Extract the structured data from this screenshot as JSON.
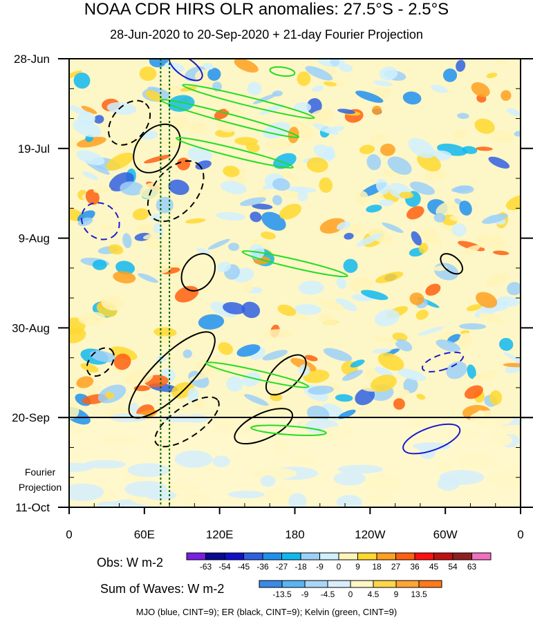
{
  "title": "NOAA CDR HIRS OLR anomalies: 27.5°S - 2.5°S",
  "subtitle": "28-Jun-2020 to 20-Sep-2020 + 21-day Fourier Projection",
  "projection_label_line1": "Fourier",
  "projection_label_line2": "Projection",
  "obs_label": "Obs: W m-2",
  "waves_label": "Sum of Waves: W m-2",
  "footer": "MJO (blue, CINT=9); ER (black, CINT=9); Kelvin (green, CINT=9)",
  "colors": {
    "mjo": "#1a1acc",
    "er": "#000000",
    "kelvin": "#22dd22",
    "dotted_lines": "#006400"
  },
  "chart_data": {
    "type": "heatmap",
    "xlabel": "",
    "ylabel": "",
    "x_ticks": [
      "0",
      "60E",
      "120E",
      "180",
      "120W",
      "60W",
      "0"
    ],
    "x_tick_lon": [
      0,
      60,
      120,
      180,
      240,
      300,
      360
    ],
    "y_ticks": [
      "28-Jun",
      "19-Jul",
      "9-Aug",
      "30-Aug",
      "20-Sep",
      "11-Oct"
    ],
    "y_tick_day": [
      0,
      21,
      42,
      63,
      84,
      105
    ],
    "observation_end": "20-Sep",
    "reference_lon_lines": [
      73,
      80
    ],
    "obs_colorbar": {
      "labels": [
        "-63",
        "-54",
        "-45",
        "-36",
        "-27",
        "-18",
        "-9",
        "0",
        "9",
        "18",
        "27",
        "36",
        "45",
        "54",
        "63"
      ],
      "colors": [
        "#7a1fe0",
        "#0a0a90",
        "#1010c8",
        "#3060e0",
        "#2090f0",
        "#10b8f0",
        "#9cd0f8",
        "#d0f0ff",
        "#fff4b8",
        "#ffd830",
        "#ffa020",
        "#ff6010",
        "#ff1010",
        "#c01010",
        "#902020",
        "#f070c0"
      ]
    },
    "waves_colorbar": {
      "labels": [
        "-13.5",
        "-9",
        "-4.5",
        "0",
        "4.5",
        "9",
        "13.5"
      ],
      "colors": [
        "#3a8ae6",
        "#59b4f2",
        "#a7d6f6",
        "#d7eefa",
        "#fff6c4",
        "#ffd64a",
        "#ffa533",
        "#ff7a1a"
      ]
    },
    "wave_contours": [
      {
        "wave": "MJO",
        "lon": 93,
        "day": 2,
        "rlon": 7,
        "rday": 4.5,
        "tilt": -55,
        "dash": false
      },
      {
        "wave": "MJO",
        "lon": 25,
        "day": 38,
        "rlon": 16,
        "rday": 4,
        "tilt": 40,
        "dash": true
      },
      {
        "wave": "MJO",
        "lon": 289,
        "day": 89,
        "rlon": 9,
        "rday": 7,
        "tilt": 70,
        "dash": false
      },
      {
        "wave": "MJO",
        "lon": 298,
        "day": 71,
        "rlon": 6,
        "rday": 5,
        "tilt": 72,
        "dash": true
      },
      {
        "wave": "ER",
        "lon": 48,
        "day": 15,
        "rlon": 20,
        "rday": 4,
        "tilt": -50,
        "dash": true
      },
      {
        "wave": "ER",
        "lon": 70,
        "day": 21,
        "rlon": 22,
        "rday": 4.5,
        "tilt": -48,
        "dash": false
      },
      {
        "wave": "ER",
        "lon": 85,
        "day": 31,
        "rlon": 28,
        "rday": 5,
        "tilt": -50,
        "dash": true
      },
      {
        "wave": "ER",
        "lon": 103,
        "day": 50,
        "rlon": 16,
        "rday": 3.5,
        "tilt": -55,
        "dash": false
      },
      {
        "wave": "ER",
        "lon": 82,
        "day": 74,
        "rlon": 46,
        "rday": 4.5,
        "tilt": -45,
        "dash": false
      },
      {
        "wave": "ER",
        "lon": 25,
        "day": 71,
        "rlon": 13,
        "rday": 2.5,
        "tilt": -48,
        "dash": true
      },
      {
        "wave": "ER",
        "lon": 94,
        "day": 85,
        "rlon": 30,
        "rday": 3.5,
        "tilt": -35,
        "dash": true
      },
      {
        "wave": "ER",
        "lon": 155,
        "day": 86,
        "rlon": 25,
        "rday": 3,
        "tilt": -25,
        "dash": false
      },
      {
        "wave": "ER",
        "lon": 173,
        "day": 74,
        "rlon": 20,
        "rday": 3,
        "tilt": -45,
        "dash": false
      },
      {
        "wave": "ER",
        "lon": 305,
        "day": 48,
        "rlon": 6,
        "rday": 3,
        "tilt": -50,
        "dash": false
      },
      {
        "wave": "Kelvin",
        "lon": 143,
        "day": 10,
        "rlon": 54,
        "rday": 1,
        "tilt": 14,
        "dash": false
      },
      {
        "wave": "Kelvin",
        "lon": 128,
        "day": 14,
        "rlon": 57,
        "rday": 1,
        "tilt": 15,
        "dash": false
      },
      {
        "wave": "Kelvin",
        "lon": 132,
        "day": 22,
        "rlon": 48,
        "rday": 1,
        "tilt": 14,
        "dash": false
      },
      {
        "wave": "Kelvin",
        "lon": 180,
        "day": 48,
        "rlon": 43,
        "rday": 1,
        "tilt": 13,
        "dash": false
      },
      {
        "wave": "Kelvin",
        "lon": 150,
        "day": 74,
        "rlon": 42,
        "rday": 1,
        "tilt": 13,
        "dash": false
      },
      {
        "wave": "Kelvin",
        "lon": 175,
        "day": 87,
        "rlon": 30,
        "rday": 1,
        "tilt": 4,
        "dash": false
      },
      {
        "wave": "Kelvin",
        "lon": 170,
        "day": 3,
        "rlon": 10,
        "rday": 1,
        "tilt": 8,
        "dash": false
      }
    ]
  }
}
